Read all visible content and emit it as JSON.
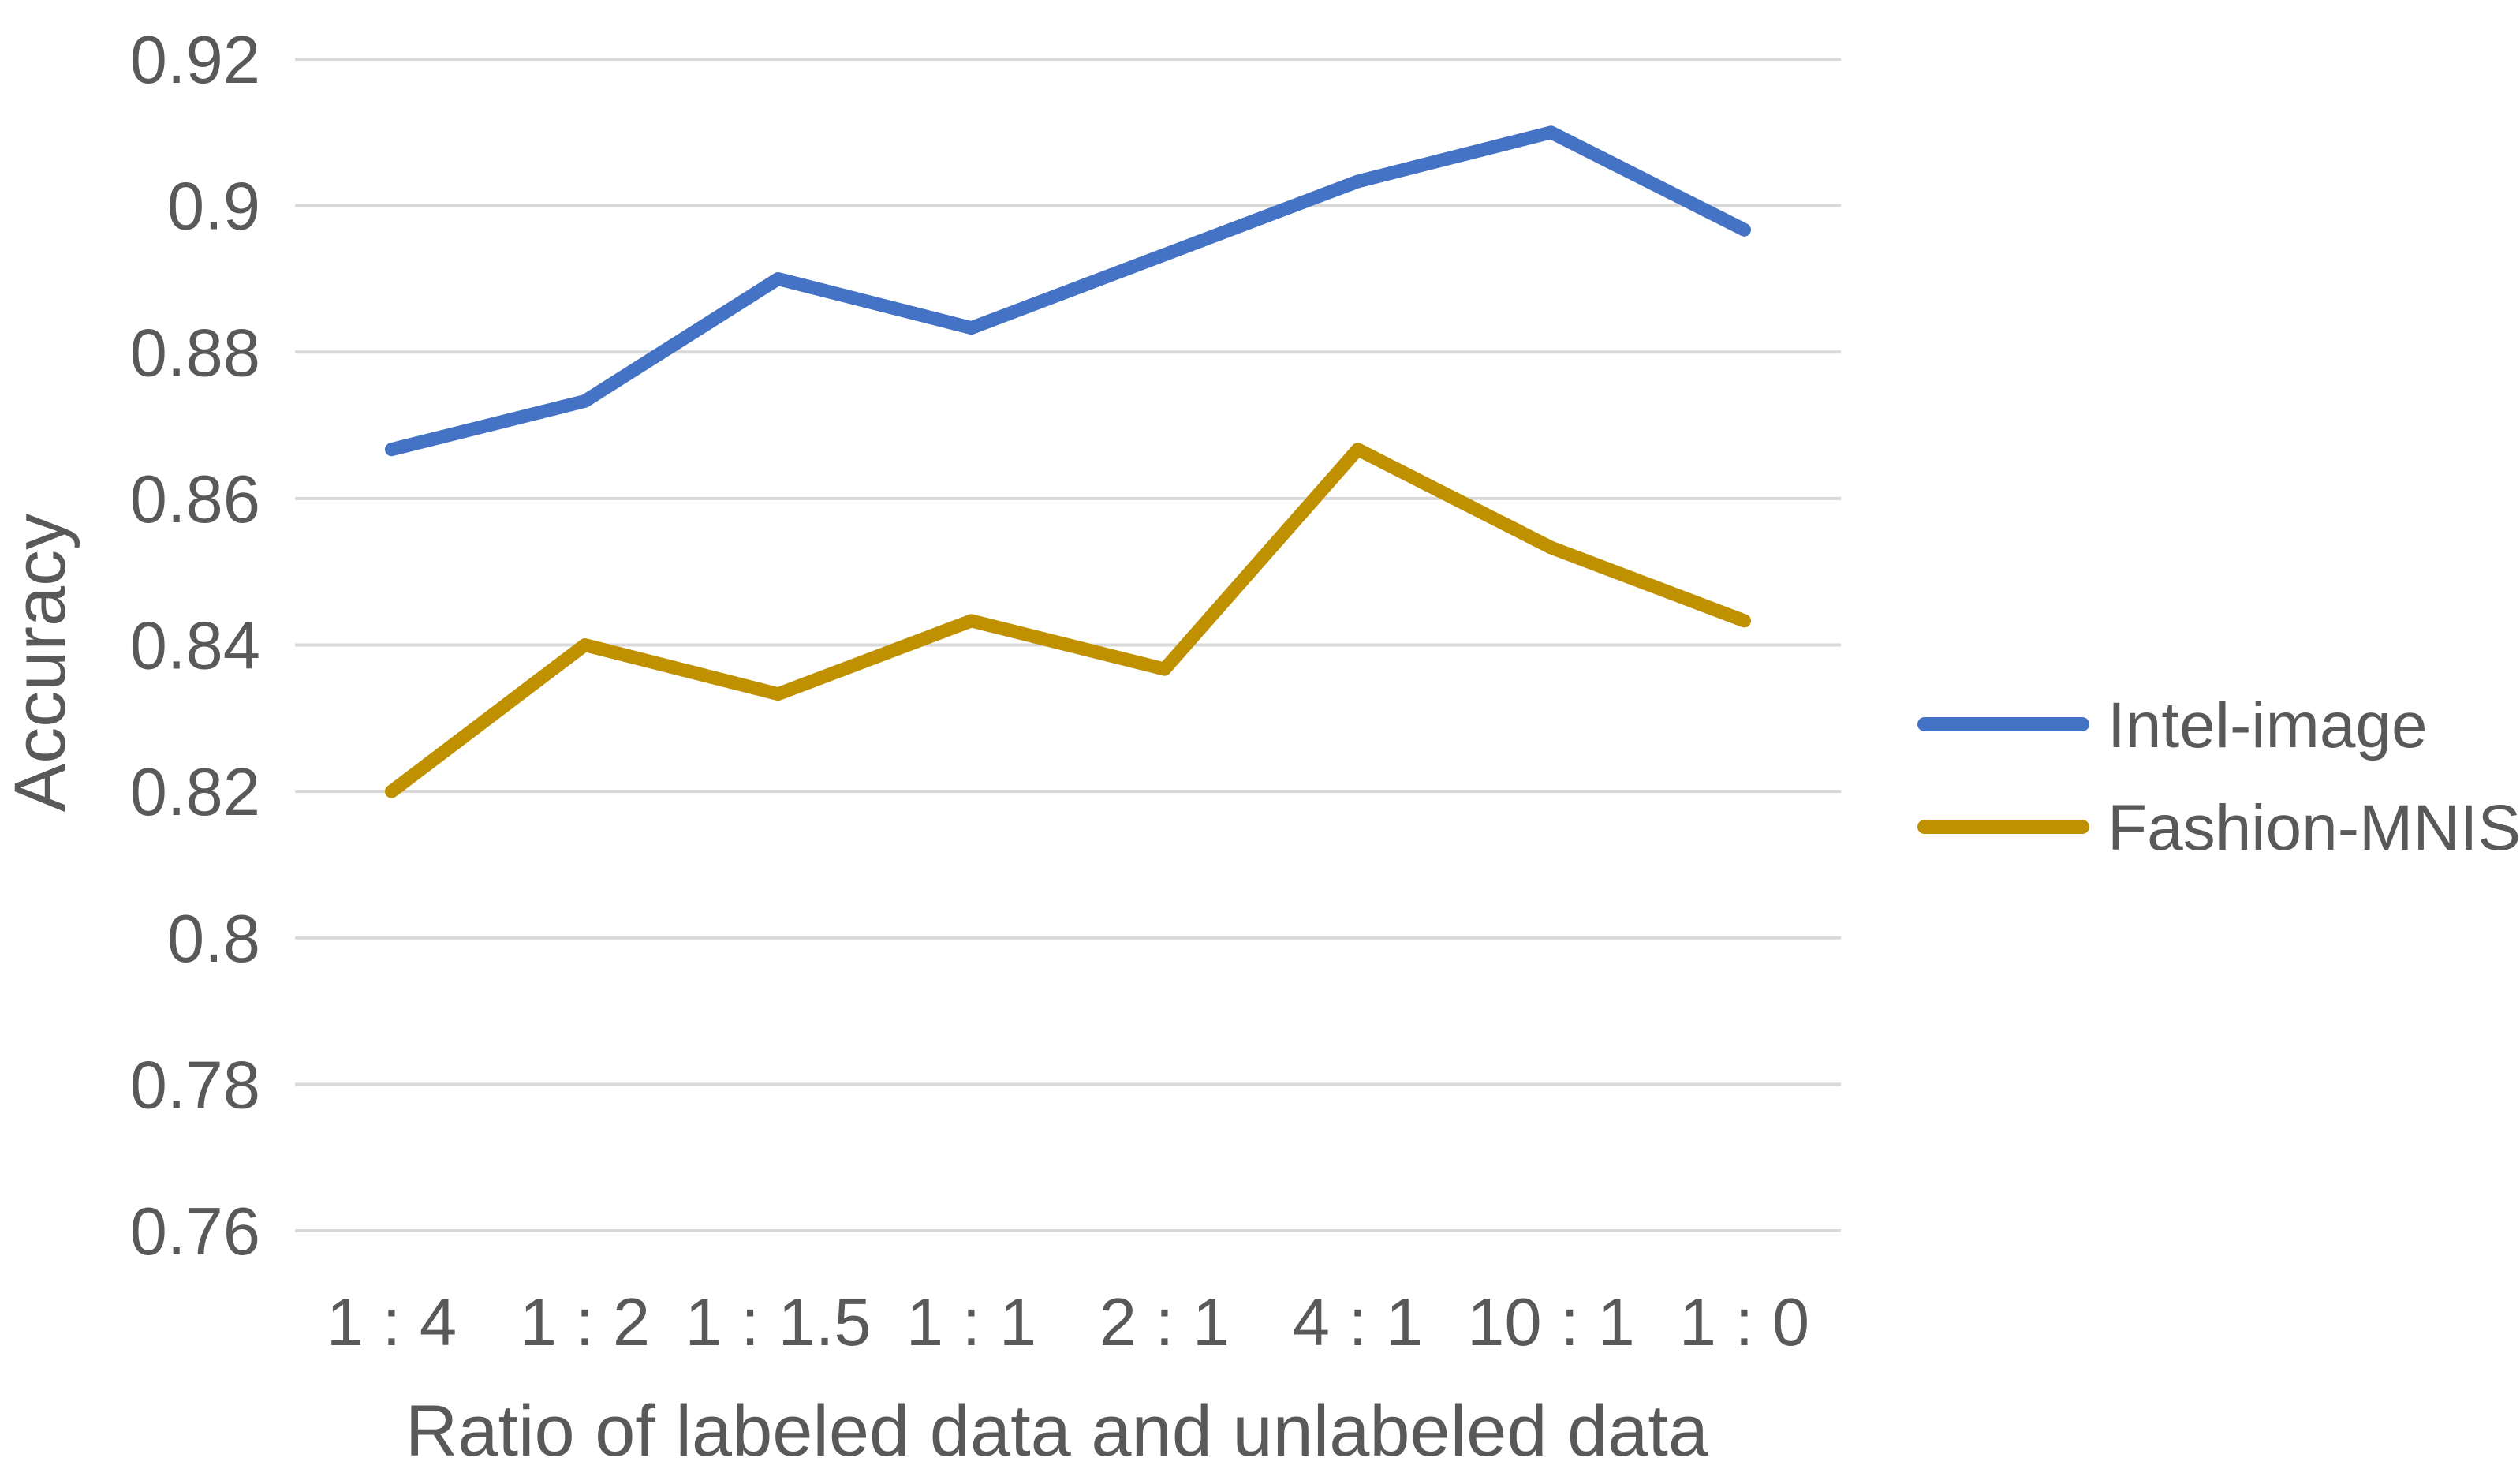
{
  "chart_data": {
    "type": "line",
    "title": "",
    "xlabel": "Ratio of labeled data and unlabeled data",
    "ylabel": "Accuracy",
    "categories": [
      "1 : 4",
      "1 : 2",
      "1 : 1.5",
      "1 : 1",
      "2 : 1",
      "4 : 1",
      "10 : 1",
      "1 : 0"
    ],
    "series": [
      {
        "name": "Intel-image",
        "color": "#4472C4",
        "values": [
          0.8667,
          0.8733,
          0.89,
          0.8833,
          0.8933,
          0.9033,
          0.91,
          0.8967
        ]
      },
      {
        "name": "Fashion-MNIST",
        "color": "#BF9000",
        "values": [
          0.82,
          0.84,
          0.8333,
          0.8433,
          0.8367,
          0.8667,
          0.8533,
          0.8433
        ]
      }
    ],
    "ylim": [
      0.76,
      0.92
    ],
    "y_tick_labels": [
      "0.92",
      "0.9",
      "0.88",
      "0.86",
      "0.84",
      "0.82",
      "0.8",
      "0.78",
      "0.76"
    ],
    "y_tick_values": [
      0.92,
      0.9,
      0.88,
      0.86,
      0.84,
      0.82,
      0.8,
      0.78,
      0.76
    ],
    "grid": "horizontal",
    "legend_position": "right"
  },
  "colors": {
    "text": "#595959",
    "gridline": "#D9D9D9",
    "background": "#FFFFFF"
  }
}
